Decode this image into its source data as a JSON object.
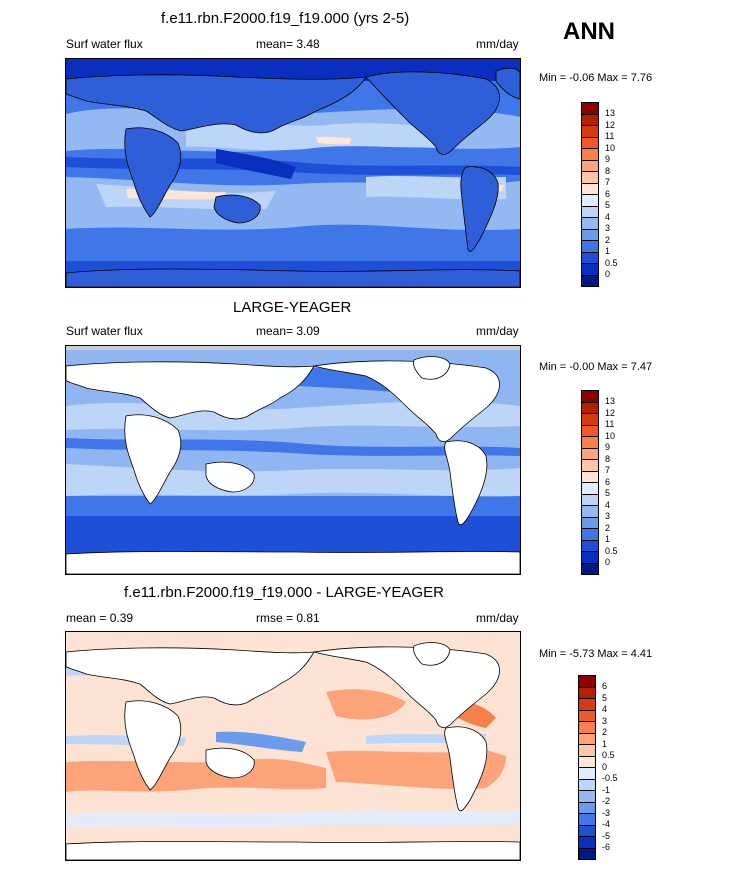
{
  "header": {
    "season": "ANN"
  },
  "panels": [
    {
      "title": "f.e11.rbn.F2000.f19_f19.000 (yrs 2-5)",
      "left_label": "Surf water flux",
      "center_label": "mean=   3.48",
      "right_label": "mm/day",
      "minmax": "Min =  -0.06 Max =   7.76",
      "ocean_base": "#3f77e8",
      "land_fill": "#2f5fd8",
      "levels": [
        "13",
        "12",
        "11",
        "10",
        "9",
        "8",
        "7",
        "6",
        "5",
        "4",
        "3",
        "2",
        "1",
        "0.5",
        "0"
      ],
      "colors": [
        "#8b0000",
        "#b22000",
        "#d83a10",
        "#f05a28",
        "#f8804a",
        "#fca37a",
        "#fdc7a8",
        "#fde6d6",
        "#e2ecfb",
        "#bdd5f7",
        "#94b9f2",
        "#6a9bec",
        "#3f77e8",
        "#1f4fd6",
        "#0a2fbf",
        "#001a80"
      ]
    },
    {
      "title": "LARGE-YEAGER",
      "left_label": "Surf water flux",
      "center_label": "mean=   3.09",
      "right_label": "mm/day",
      "minmax": "Min =  -0.00 Max =   7.47",
      "ocean_base": "#8fb5f2",
      "land_fill": "#ffffff",
      "levels": [
        "13",
        "12",
        "11",
        "10",
        "9",
        "8",
        "7",
        "6",
        "5",
        "4",
        "3",
        "2",
        "1",
        "0.5",
        "0"
      ],
      "colors": [
        "#8b0000",
        "#b22000",
        "#d83a10",
        "#f05a28",
        "#f8804a",
        "#fca37a",
        "#fdc7a8",
        "#fde6d6",
        "#e2ecfb",
        "#bdd5f7",
        "#94b9f2",
        "#6a9bec",
        "#3f77e8",
        "#1f4fd6",
        "#0a2fbf",
        "#001a80"
      ]
    },
    {
      "title": "f.e11.rbn.F2000.f19_f19.000 - LARGE-YEAGER",
      "left_label": "mean =   0.39",
      "center_label": "rmse =   0.81",
      "right_label": "mm/day",
      "minmax": "Min =  -5.73 Max =   4.41",
      "ocean_base": "#fde3d4",
      "land_fill": "#ffffff",
      "levels": [
        "6",
        "5",
        "4",
        "3",
        "2",
        "1",
        "0.5",
        "0",
        "-0.5",
        "-1",
        "-2",
        "-3",
        "-4",
        "-5",
        "-6"
      ],
      "colors": [
        "#8b0000",
        "#b22000",
        "#d83a10",
        "#f05a28",
        "#f8804a",
        "#fca37a",
        "#fdc7a8",
        "#fde6d6",
        "#e2ecfb",
        "#bdd5f7",
        "#94b9f2",
        "#6a9bec",
        "#3f77e8",
        "#1f4fd6",
        "#0a2fbf",
        "#001a80"
      ]
    }
  ]
}
